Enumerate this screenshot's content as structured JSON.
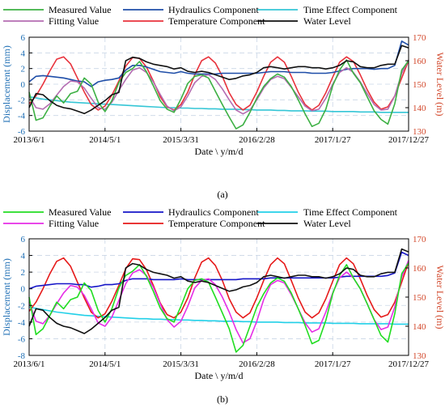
{
  "chart_data": [
    {
      "type": "line",
      "caption": "(a)",
      "xlabel": "Date \\ y/m/d",
      "ylabel_left": "Displacement (mm)",
      "ylabel_right": "Water Level (m)",
      "x_tick_labels": [
        "2013/6/1",
        "2014/5/1",
        "2015/3/31",
        "2016/2/28",
        "2017/1/27",
        "2017/12/27"
      ],
      "ylim_left": [
        -6,
        6
      ],
      "yticks_left": [
        -6,
        -4,
        -2,
        0,
        2,
        4,
        6
      ],
      "ylim_right": [
        130,
        170
      ],
      "yticks_right": [
        130,
        140,
        150,
        160,
        170
      ],
      "grid": true,
      "legend_position": "top",
      "x": [
        0,
        1,
        2,
        3,
        4,
        5,
        6,
        7,
        8,
        9,
        10,
        11,
        12,
        13,
        14,
        15,
        16,
        17,
        18,
        19,
        20,
        21,
        22,
        23,
        24,
        25,
        26,
        27,
        28,
        29,
        30,
        31,
        32,
        33,
        34,
        35,
        36,
        37,
        38,
        39,
        40,
        41,
        42,
        43,
        44,
        45,
        46,
        47,
        48,
        49,
        50,
        51,
        52,
        53,
        54,
        55
      ],
      "series": [
        {
          "name": "Measured Value",
          "axis": "left",
          "color": "#3cb043",
          "values": [
            -1.0,
            -4.6,
            -4.3,
            -2.8,
            -1.5,
            -2.4,
            -1.2,
            -0.9,
            0.8,
            0.0,
            -2.3,
            -3.5,
            -2.1,
            0.2,
            1.5,
            2.0,
            2.9,
            1.6,
            -0.2,
            -2.1,
            -3.2,
            -3.6,
            -1.9,
            0.1,
            1.0,
            1.2,
            0.8,
            -0.9,
            -2.6,
            -4.2,
            -5.7,
            -5.2,
            -3.6,
            -1.8,
            -0.3,
            0.7,
            1.3,
            0.9,
            -0.3,
            -2.0,
            -3.8,
            -5.4,
            -5.0,
            -3.2,
            -0.2,
            1.8,
            3.1,
            1.4,
            0.2,
            -1.6,
            -3.4,
            -4.5,
            -5.1,
            -2.5,
            1.8,
            3.0
          ]
        },
        {
          "name": "Fitting Value",
          "axis": "left",
          "color": "#b46db2",
          "values": [
            -1.5,
            -3.0,
            -3.2,
            -2.5,
            -1.4,
            -0.3,
            0.4,
            0.3,
            -0.5,
            -1.8,
            -3.0,
            -3.2,
            -2.3,
            -0.8,
            0.6,
            1.8,
            2.1,
            1.5,
            0.3,
            -1.3,
            -2.8,
            -3.4,
            -2.9,
            -1.5,
            0.2,
            1.0,
            1.2,
            0.6,
            -0.6,
            -2.0,
            -3.3,
            -3.8,
            -3.3,
            -2.0,
            -0.5,
            0.6,
            1.0,
            0.7,
            -0.4,
            -1.6,
            -2.8,
            -3.4,
            -3.2,
            -1.8,
            0.0,
            1.5,
            2.1,
            1.5,
            0.3,
            -1.2,
            -2.6,
            -3.3,
            -3.2,
            -1.5,
            1.4,
            3.1
          ]
        },
        {
          "name": "Hydraulics Component",
          "axis": "left",
          "color": "#1f4ea8",
          "values": [
            0.3,
            1.0,
            1.1,
            1.0,
            0.9,
            0.8,
            0.6,
            0.4,
            0.3,
            -0.3,
            0.3,
            0.5,
            0.6,
            0.8,
            1.8,
            2.4,
            2.4,
            2.2,
            1.9,
            1.6,
            1.5,
            1.4,
            1.6,
            1.4,
            1.3,
            1.3,
            1.3,
            1.3,
            1.4,
            1.4,
            1.4,
            1.4,
            1.4,
            1.4,
            1.5,
            1.6,
            1.6,
            1.6,
            1.5,
            1.5,
            1.5,
            1.4,
            1.4,
            1.4,
            1.5,
            1.7,
            1.9,
            2.0,
            2.0,
            2.0,
            1.9,
            2.0,
            2.0,
            2.4,
            5.5,
            5.0
          ]
        },
        {
          "name": "Temperature Component",
          "axis": "left",
          "color": "#e8323c",
          "values": [
            -2.5,
            -1.5,
            0.0,
            1.7,
            3.2,
            3.5,
            2.6,
            0.8,
            -1.0,
            -2.6,
            -3.3,
            -2.8,
            -1.4,
            0.4,
            2.3,
            3.4,
            3.3,
            2.2,
            0.4,
            -1.6,
            -2.9,
            -3.3,
            -2.6,
            -1.0,
            1.2,
            3.0,
            3.5,
            2.7,
            1.0,
            -1.1,
            -2.6,
            -3.3,
            -2.7,
            -1.0,
            1.0,
            2.8,
            3.5,
            2.8,
            1.0,
            -1.0,
            -2.6,
            -3.3,
            -2.7,
            -1.1,
            0.9,
            2.8,
            3.5,
            2.9,
            1.2,
            -0.7,
            -2.3,
            -3.2,
            -2.9,
            -1.5,
            0.8,
            3.0
          ]
        },
        {
          "name": "Time Effect Component",
          "axis": "left",
          "color": "#35c6d6",
          "values": [
            -1.6,
            -1.75,
            -1.9,
            -2.0,
            -2.1,
            -2.2,
            -2.3,
            -2.35,
            -2.4,
            -2.45,
            -2.5,
            -2.55,
            -2.6,
            -2.65,
            -2.7,
            -2.75,
            -2.8,
            -2.85,
            -2.9,
            -2.95,
            -3.0,
            -3.0,
            -3.05,
            -3.05,
            -3.1,
            -3.1,
            -3.15,
            -3.15,
            -3.2,
            -3.2,
            -3.2,
            -3.25,
            -3.25,
            -3.3,
            -3.3,
            -3.3,
            -3.35,
            -3.35,
            -3.4,
            -3.4,
            -3.4,
            -3.45,
            -3.45,
            -3.45,
            -3.5,
            -3.5,
            -3.5,
            -3.5,
            -3.55,
            -3.55,
            -3.55,
            -3.6,
            -3.6,
            -3.6,
            -3.6,
            -3.6
          ]
        },
        {
          "name": "Water Level",
          "axis": "right",
          "color": "#111111",
          "values": [
            140.0,
            146.0,
            145.5,
            143.0,
            141.0,
            140.0,
            139.5,
            138.5,
            137.5,
            139.0,
            141.0,
            143.0,
            145.5,
            146.5,
            160.0,
            161.5,
            161.0,
            159.5,
            158.5,
            158.0,
            157.5,
            156.5,
            157.0,
            155.5,
            155.0,
            155.5,
            155.0,
            154.0,
            153.0,
            152.0,
            152.5,
            153.5,
            154.0,
            155.0,
            157.0,
            157.5,
            157.0,
            156.5,
            157.0,
            157.5,
            157.5,
            157.0,
            157.0,
            156.5,
            157.0,
            158.0,
            160.0,
            159.5,
            157.5,
            157.0,
            157.0,
            158.0,
            158.5,
            158.5,
            166.5,
            165.5
          ]
        }
      ]
    },
    {
      "type": "line",
      "caption": "(b)",
      "xlabel": "Date \\ y/m/d",
      "ylabel_left": "Displacement (mm)",
      "ylabel_right": "Water Level (m)",
      "x_tick_labels": [
        "2013/6/1",
        "2014/5/1",
        "2015/3/31",
        "2016/2/28",
        "2017/1/27",
        "2017/12/27"
      ],
      "ylim_left": [
        -8,
        6
      ],
      "yticks_left": [
        -8,
        -6,
        -4,
        -2,
        0,
        2,
        4,
        6
      ],
      "ylim_right": [
        130,
        170
      ],
      "yticks_right": [
        130,
        140,
        150,
        160,
        170
      ],
      "grid": true,
      "legend_position": "top",
      "x": [
        0,
        1,
        2,
        3,
        4,
        5,
        6,
        7,
        8,
        9,
        10,
        11,
        12,
        13,
        14,
        15,
        16,
        17,
        18,
        19,
        20,
        21,
        22,
        23,
        24,
        25,
        26,
        27,
        28,
        29,
        30,
        31,
        32,
        33,
        34,
        35,
        36,
        37,
        38,
        39,
        40,
        41,
        42,
        43,
        44,
        45,
        46,
        47,
        48,
        49,
        50,
        51,
        52,
        53,
        54,
        55
      ],
      "series": [
        {
          "name": "Measured Value",
          "axis": "left",
          "color": "#22dd22",
          "values": [
            -1.0,
            -5.5,
            -4.8,
            -3.2,
            -1.6,
            -2.4,
            -1.3,
            -1.0,
            0.7,
            -0.2,
            -2.6,
            -4.0,
            -2.4,
            0.1,
            1.6,
            2.1,
            2.9,
            1.5,
            -0.3,
            -2.3,
            -3.6,
            -4.0,
            -2.1,
            0.0,
            1.0,
            1.2,
            0.8,
            -1.0,
            -2.9,
            -4.8,
            -7.6,
            -6.8,
            -4.5,
            -2.2,
            -0.6,
            0.7,
            1.3,
            0.9,
            -0.5,
            -2.4,
            -4.4,
            -6.6,
            -6.2,
            -3.8,
            -0.6,
            1.6,
            2.9,
            1.3,
            0.0,
            -1.8,
            -3.7,
            -5.6,
            -6.4,
            -3.0,
            1.8,
            3.1
          ]
        },
        {
          "name": "Fitting Value",
          "axis": "left",
          "color": "#e62ee6",
          "values": [
            -1.6,
            -3.9,
            -4.2,
            -3.2,
            -1.8,
            -0.5,
            0.4,
            0.2,
            -0.8,
            -2.4,
            -4.1,
            -4.5,
            -3.4,
            -1.4,
            0.6,
            1.9,
            2.3,
            1.6,
            0.2,
            -1.8,
            -3.7,
            -4.6,
            -3.9,
            -2.1,
            0.1,
            1.0,
            1.2,
            0.5,
            -1.0,
            -2.8,
            -4.9,
            -6.5,
            -6.0,
            -3.9,
            -1.3,
            0.5,
            1.0,
            0.7,
            -0.7,
            -2.4,
            -4.1,
            -5.2,
            -4.8,
            -2.8,
            -0.5,
            1.3,
            2.0,
            1.3,
            0.0,
            -1.8,
            -3.7,
            -4.9,
            -4.6,
            -2.2,
            1.4,
            3.4
          ]
        },
        {
          "name": "Hydraulics Component",
          "axis": "left",
          "color": "#1616c8",
          "values": [
            0.0,
            0.3,
            0.4,
            0.5,
            0.6,
            0.6,
            0.6,
            0.5,
            0.5,
            0.2,
            0.3,
            0.5,
            0.5,
            0.6,
            1.0,
            1.2,
            1.2,
            1.2,
            1.1,
            1.1,
            1.1,
            1.1,
            1.2,
            1.1,
            1.1,
            1.1,
            1.1,
            1.1,
            1.1,
            1.1,
            1.1,
            1.2,
            1.2,
            1.2,
            1.2,
            1.3,
            1.3,
            1.3,
            1.3,
            1.3,
            1.3,
            1.3,
            1.3,
            1.3,
            1.3,
            1.4,
            1.5,
            1.5,
            1.5,
            1.5,
            1.5,
            1.5,
            1.6,
            1.9,
            4.4,
            4.0
          ]
        },
        {
          "name": "Temperature Component",
          "axis": "left",
          "color": "#e61a1a",
          "values": [
            -2.7,
            -1.6,
            0.0,
            1.8,
            3.3,
            3.7,
            2.7,
            0.8,
            -1.1,
            -2.8,
            -3.5,
            -3.0,
            -1.5,
            0.4,
            2.4,
            3.6,
            3.5,
            2.3,
            0.4,
            -1.7,
            -3.1,
            -3.5,
            -2.8,
            -1.1,
            1.3,
            3.2,
            3.7,
            2.8,
            1.0,
            -1.2,
            -2.8,
            -3.5,
            -2.9,
            -1.1,
            1.0,
            2.9,
            3.7,
            3.0,
            1.0,
            -1.1,
            -2.8,
            -3.5,
            -2.9,
            -1.2,
            0.9,
            2.9,
            3.7,
            3.0,
            1.2,
            -0.8,
            -2.5,
            -3.4,
            -3.1,
            -1.6,
            0.8,
            3.2
          ]
        },
        {
          "name": "Time Effect Component",
          "axis": "left",
          "color": "#22d0e8",
          "values": [
            -2.2,
            -2.35,
            -2.5,
            -2.65,
            -2.8,
            -2.9,
            -3.0,
            -3.1,
            -3.2,
            -3.25,
            -3.3,
            -3.35,
            -3.4,
            -3.45,
            -3.5,
            -3.55,
            -3.6,
            -3.6,
            -3.65,
            -3.65,
            -3.7,
            -3.7,
            -3.75,
            -3.75,
            -3.8,
            -3.8,
            -3.85,
            -3.85,
            -3.9,
            -3.9,
            -3.9,
            -3.95,
            -3.95,
            -4.0,
            -4.0,
            -4.0,
            -4.0,
            -4.05,
            -4.05,
            -4.05,
            -4.1,
            -4.1,
            -4.1,
            -4.1,
            -4.15,
            -4.15,
            -4.15,
            -4.15,
            -4.2,
            -4.2,
            -4.2,
            -4.2,
            -4.2,
            -4.25,
            -4.25,
            -4.25
          ]
        },
        {
          "name": "Water Level",
          "axis": "right",
          "color": "#111111",
          "values": [
            140.0,
            146.0,
            145.5,
            143.0,
            141.0,
            140.0,
            139.5,
            138.5,
            137.5,
            139.0,
            141.0,
            143.0,
            145.5,
            146.5,
            160.0,
            161.5,
            161.0,
            159.5,
            158.5,
            158.0,
            157.5,
            156.5,
            157.0,
            155.5,
            155.0,
            155.5,
            155.0,
            154.0,
            153.0,
            152.0,
            152.5,
            153.5,
            154.0,
            155.0,
            157.0,
            157.5,
            157.0,
            156.5,
            157.0,
            157.5,
            157.5,
            157.0,
            157.0,
            156.5,
            157.0,
            158.0,
            160.0,
            159.5,
            157.5,
            157.0,
            157.0,
            158.0,
            158.5,
            158.5,
            166.5,
            165.5
          ]
        }
      ]
    }
  ]
}
